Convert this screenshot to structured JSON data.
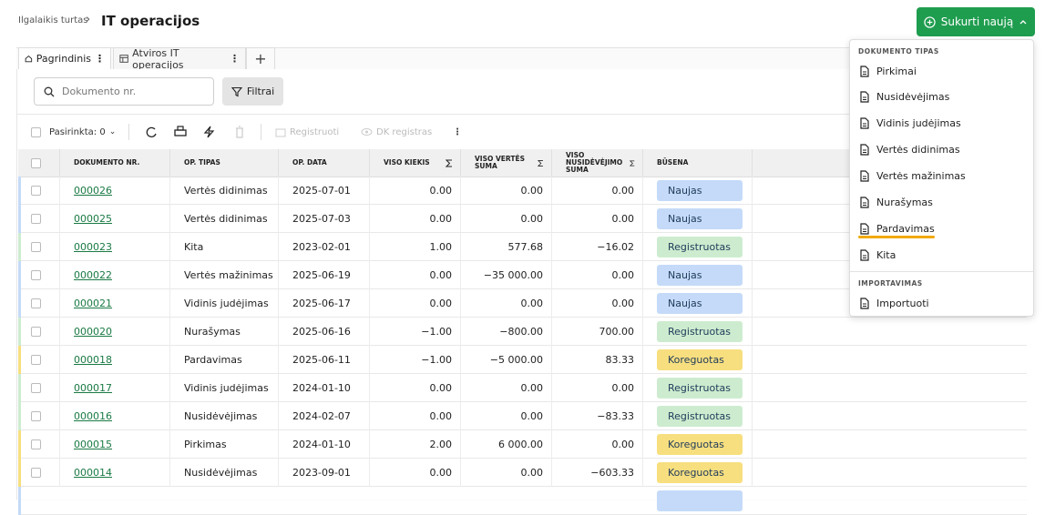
{
  "breadcrumb": {
    "parent": "Ilgalaikis turtas",
    "title": "IT operacijos"
  },
  "create_button": "Sukurti naują",
  "tabs": [
    "Pagrindinis",
    "Atviros IT operacijos"
  ],
  "search_placeholder": "Dokumento nr.",
  "filter_button": "Filtrai",
  "toolbar": {
    "selected": "Pasirinkta: 0",
    "register": "Registruoti",
    "dk_register": "DK registras"
  },
  "table": {
    "columns": [
      "DOKUMENTO NR.",
      "OP. TIPAS",
      "OP. DATA",
      "VISO KIEKIS",
      "VISO VERTĖS SUMA",
      "VISO NUSIDĖVĖJIMO SUMA",
      "BŪSENA"
    ],
    "rows": [
      {
        "number": "000026",
        "type": "Vertės didinimas",
        "date": "2025-07-01",
        "quantity": "0.00",
        "value": "0.00",
        "depreciation": "0.00",
        "status": "Naujas",
        "color": "#c4daf8"
      },
      {
        "number": "000025",
        "type": "Vertės didinimas",
        "date": "2025-07-03",
        "quantity": "0.00",
        "value": "0.00",
        "depreciation": "0.00",
        "status": "Naujas",
        "color": "#c4daf8"
      },
      {
        "number": "000023",
        "type": "Kita",
        "date": "2023-02-01",
        "quantity": "1.00",
        "value": "577.68",
        "depreciation": "−16.02",
        "status": "Registruotas",
        "color": "#cdeccf"
      },
      {
        "number": "000022",
        "type": "Vertės mažinimas",
        "date": "2025-06-19",
        "quantity": "0.00",
        "value": "−35 000.00",
        "depreciation": "0.00",
        "status": "Naujas",
        "color": "#c4daf8"
      },
      {
        "number": "000021",
        "type": "Vidinis judėjimas",
        "date": "2025-06-17",
        "quantity": "0.00",
        "value": "0.00",
        "depreciation": "0.00",
        "status": "Naujas",
        "color": "#c4daf8"
      },
      {
        "number": "000020",
        "type": "Nurašymas",
        "date": "2025-06-16",
        "quantity": "−1.00",
        "value": "−800.00",
        "depreciation": "700.00",
        "status": "Registruotas",
        "color": "#cdeccf"
      },
      {
        "number": "000018",
        "type": "Pardavimas",
        "date": "2025-06-11",
        "quantity": "−1.00",
        "value": "−5 000.00",
        "depreciation": "83.33",
        "status": "Koreguotas",
        "color": "#f7df7f"
      },
      {
        "number": "000017",
        "type": "Vidinis judėjimas",
        "date": "2024-01-10",
        "quantity": "0.00",
        "value": "0.00",
        "depreciation": "0.00",
        "status": "Registruotas",
        "color": "#cdeccf"
      },
      {
        "number": "000016",
        "type": "Nusidėvėjimas",
        "date": "2024-02-07",
        "quantity": "0.00",
        "value": "0.00",
        "depreciation": "−83.33",
        "status": "Registruotas",
        "color": "#cdeccf"
      },
      {
        "number": "000015",
        "type": "Pirkimas",
        "date": "2024-01-10",
        "quantity": "2.00",
        "value": "6 000.00",
        "depreciation": "0.00",
        "status": "Koreguotas",
        "color": "#f7df7f"
      },
      {
        "number": "000014",
        "type": "Nusidėvėjimas",
        "date": "2023-09-01",
        "quantity": "0.00",
        "value": "0.00",
        "depreciation": "−603.33",
        "status": "Koreguotas",
        "color": "#f7df7f"
      }
    ]
  },
  "dropdown": {
    "sections": [
      {
        "title": "DOKUMENTO TIPAS",
        "items": [
          "Pirkimai",
          "Nusidėvėjimas",
          "Vidinis judėjimas",
          "Vertės didinimas",
          "Vertės mažinimas",
          "Nurašymas",
          "Pardavimas",
          "Kita"
        ]
      },
      {
        "title": "IMPORTAVIMAS",
        "items": [
          "Importuoti"
        ]
      }
    ]
  }
}
